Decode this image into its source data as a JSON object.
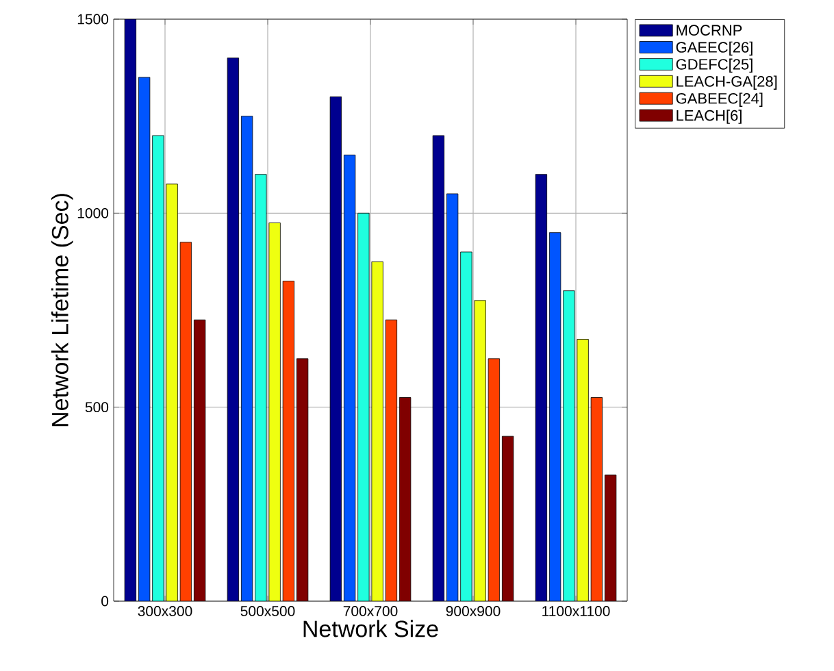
{
  "chart_data": {
    "type": "bar",
    "xlabel": "Network Size",
    "ylabel": "Network Lifetime (Sec)",
    "categories": [
      "300x300",
      "500x500",
      "700x700",
      "900x900",
      "1100x1100"
    ],
    "series": [
      {
        "name": "MOCRNP",
        "color": "#00008f",
        "values": [
          1500,
          1400,
          1300,
          1200,
          1100
        ]
      },
      {
        "name": "GAEEC[26]",
        "color": "#0055ff",
        "values": [
          1350,
          1250,
          1150,
          1050,
          950
        ]
      },
      {
        "name": "GDEFC[25]",
        "color": "#20ffdf",
        "values": [
          1200,
          1100,
          1000,
          900,
          800
        ]
      },
      {
        "name": "LEACH-GA[28]",
        "color": "#efff10",
        "values": [
          1075,
          975,
          875,
          775,
          675
        ]
      },
      {
        "name": "GABEEC[24]",
        "color": "#ff4000",
        "values": [
          925,
          825,
          725,
          625,
          525
        ]
      },
      {
        "name": "LEACH[6]",
        "color": "#800000",
        "values": [
          725,
          625,
          525,
          425,
          325
        ]
      }
    ],
    "ylim": [
      0,
      1500
    ],
    "yticks": [
      0,
      500,
      1000,
      1500
    ],
    "grid": true,
    "legend": "right"
  }
}
